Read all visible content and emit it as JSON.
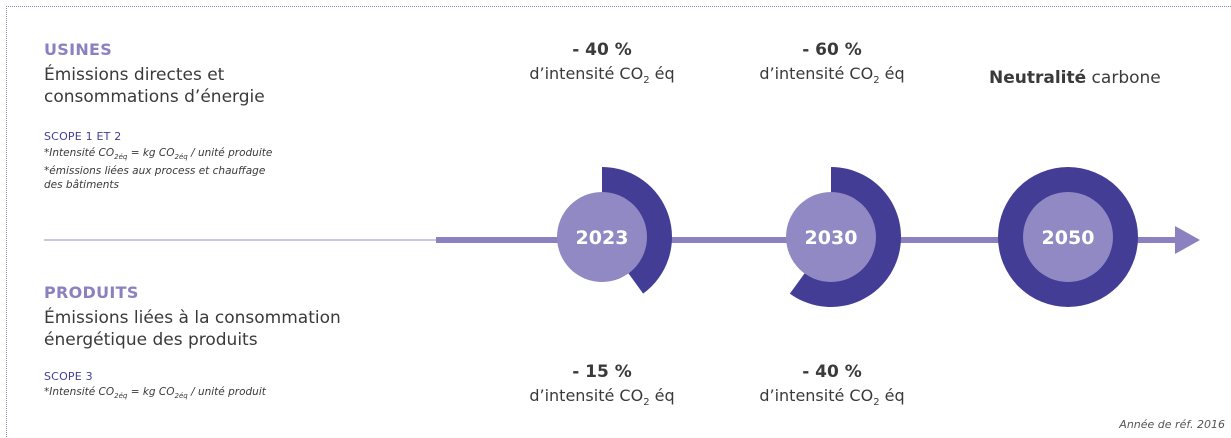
{
  "usines": {
    "title": "USINES",
    "desc_line1": "Émissions directes et",
    "desc_line2": "consommations d’énergie",
    "scope": "SCOPE 1 ET 2",
    "note_prefix": "*Intensité CO",
    "note_sub1": "2éq",
    "note_mid": " = kg CO",
    "note_sub2": "2éq",
    "note_suffix": " / unité produite",
    "note_line2": "*émissions liées aux process et chauffage",
    "note_line3": "des bâtiments"
  },
  "produits": {
    "title": "PRODUITS",
    "desc_line1": "Émissions liées à la consommation",
    "desc_line2": "énergétique des produits",
    "scope": "SCOPE 3",
    "note_prefix": "*Intensité CO",
    "note_sub1": "2éq",
    "note_mid": " = kg CO",
    "note_sub2": "2éq",
    "note_suffix": " / unité produit"
  },
  "intensity": {
    "prefix": "d’intensité CO",
    "sub": "2",
    "suffix": " éq"
  },
  "milestones": [
    {
      "year": "2023",
      "usines_pct": "- 40 %",
      "produits_pct": "- 15 %",
      "reduction_fraction": 0.4
    },
    {
      "year": "2030",
      "usines_pct": "- 60 %",
      "produits_pct": "- 40 %",
      "reduction_fraction": 0.6
    },
    {
      "year": "2050",
      "neutral_bold": "Neutralité",
      "neutral_rest": " carbone",
      "reduction_fraction": 1.0
    }
  ],
  "reference": "Année de réf. 2016",
  "colors": {
    "dark": "#433d96",
    "light": "#9189c4",
    "timeline": "#8b80c0",
    "title": "#8b80c0"
  }
}
